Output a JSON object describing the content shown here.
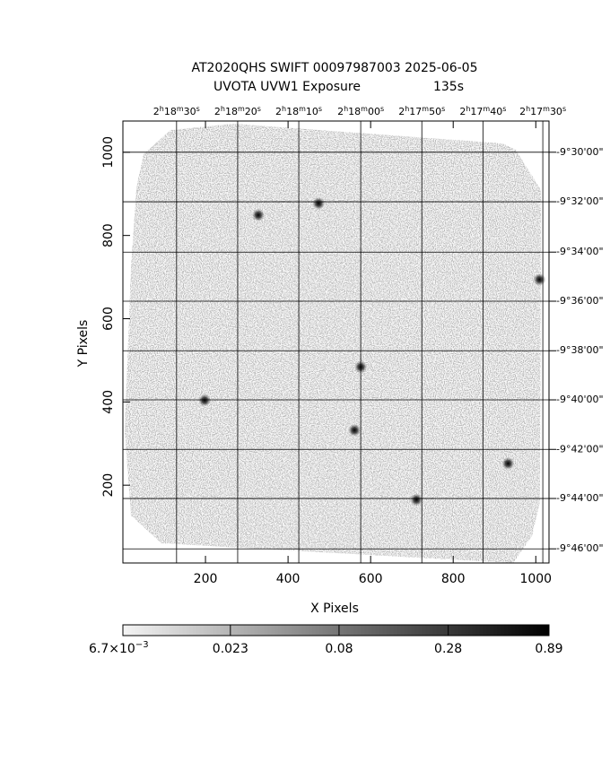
{
  "chart_data": {
    "type": "image",
    "title": "AT2020QHS SWIFT 00097987003 2025-06-05",
    "subtitle": "UVOTA UVW1 Exposure",
    "exposure": "135s",
    "x_label": "X Pixels",
    "y_label": "Y Pixels",
    "xlim": [
      0,
      1032
    ],
    "ylim": [
      13,
      1075
    ],
    "xticks": [
      200,
      400,
      600,
      800,
      1000
    ],
    "yticks": [
      200,
      400,
      600,
      800,
      1000
    ],
    "grid": true,
    "ra_ticks": [
      {
        "value": 130,
        "label": [
          "2",
          "h",
          "18",
          "m",
          "30",
          "s"
        ]
      },
      {
        "value": 278,
        "label": [
          "2",
          "h",
          "18",
          "m",
          "20",
          "s"
        ]
      },
      {
        "value": 426,
        "label": [
          "2",
          "h",
          "18",
          "m",
          "10",
          "s"
        ]
      },
      {
        "value": 576,
        "label": [
          "2",
          "h",
          "18",
          "m",
          "00",
          "s"
        ]
      },
      {
        "value": 724,
        "label": [
          "2",
          "h",
          "17",
          "m",
          "50",
          "s"
        ]
      },
      {
        "value": 872,
        "label": [
          "2",
          "h",
          "17",
          "m",
          "40",
          "s"
        ]
      },
      {
        "value": 1017,
        "label": [
          "2",
          "h",
          "17",
          "m",
          "30",
          "s"
        ]
      }
    ],
    "dec_ticks": [
      {
        "value": 1000,
        "label": "-9°30'00\""
      },
      {
        "value": 881,
        "label": "-9°32'00\""
      },
      {
        "value": 760,
        "label": "-9°34'00\""
      },
      {
        "value": 642,
        "label": "-9°36'00\""
      },
      {
        "value": 523,
        "label": "-9°38'00\""
      },
      {
        "value": 405,
        "label": "-9°40'00\""
      },
      {
        "value": 286,
        "label": "-9°42'00\""
      },
      {
        "value": 168,
        "label": "-9°44'00\""
      },
      {
        "value": 47,
        "label": "-9°46'00\""
      }
    ],
    "sources": {
      "x": [
        328,
        474,
        198,
        576,
        561,
        933,
        1009,
        711
      ],
      "y": [
        849,
        877,
        404,
        484,
        332,
        252,
        694,
        165
      ]
    },
    "colorbar": {
      "log": true,
      "lim": [
        0.0067,
        0.89
      ],
      "ticks": [
        {
          "value": 0.0067,
          "label": [
            "6.7×10",
            "−3"
          ]
        },
        {
          "value": 0.023,
          "label": "0.023"
        },
        {
          "value": 0.08,
          "label": "0.08"
        },
        {
          "value": 0.28,
          "label": "0.28"
        },
        {
          "value": 0.89,
          "label": "0.89"
        }
      ]
    }
  }
}
